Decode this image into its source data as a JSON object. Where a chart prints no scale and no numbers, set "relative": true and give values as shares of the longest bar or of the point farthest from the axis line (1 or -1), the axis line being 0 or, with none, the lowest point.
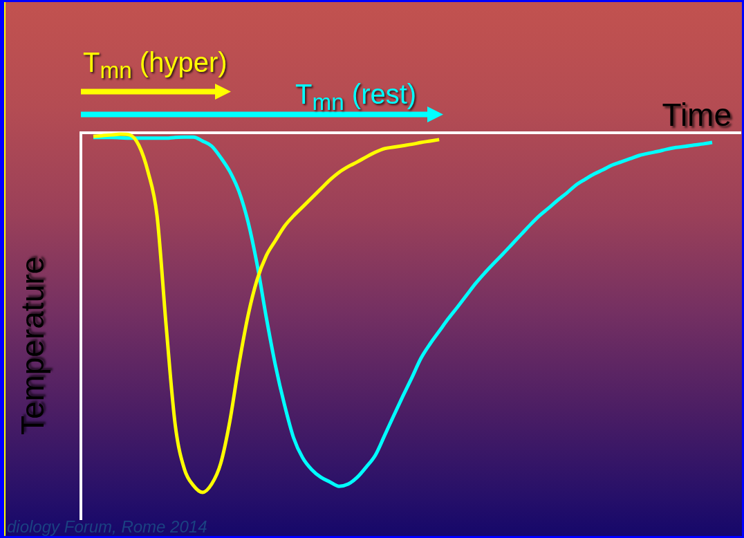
{
  "chart_data": {
    "type": "line",
    "relative": true,
    "xlabel": "Time",
    "ylabel": "Temperature",
    "legend": "top left",
    "marker": "none",
    "categories": [
      null,
      null,
      null,
      null,
      null,
      null,
      null,
      null,
      null,
      null,
      null,
      null,
      null,
      null,
      null,
      null,
      null,
      null,
      null,
      null,
      null,
      null,
      null,
      null,
      null,
      null,
      null,
      null,
      null,
      null,
      null,
      null,
      null,
      null,
      null,
      null,
      null,
      null,
      null,
      null,
      null,
      null,
      null,
      null,
      null,
      null,
      null,
      null,
      null,
      null,
      null,
      null,
      null,
      null,
      null,
      null,
      null,
      null,
      null,
      null,
      null,
      null,
      null,
      null,
      null,
      null,
      null,
      null,
      null
    ],
    "series": [
      {
        "name": "T$_{mn}$ (hyper)",
        "color": "#ffff00",
        "values": [
          -0.01,
          -0.008,
          -0.006,
          -0.004,
          -0.006,
          -0.035,
          -0.108,
          -0.231,
          -0.537,
          -0.813,
          -0.935,
          -0.981,
          -1,
          -0.977,
          -0.919,
          -0.802,
          -0.644,
          -0.508,
          -0.408,
          -0.342,
          -0.3,
          -0.26,
          -0.231,
          -0.206,
          -0.181,
          -0.156,
          -0.131,
          -0.11,
          -0.094,
          -0.081,
          -0.067,
          -0.054,
          -0.044,
          -0.04,
          -0.036,
          -0.032,
          -0.027,
          -0.023,
          -0.019,
          null,
          null,
          null,
          null,
          null,
          null,
          null,
          null,
          null,
          null,
          null,
          null,
          null,
          null,
          null,
          null,
          null,
          null,
          null,
          null,
          null,
          null,
          null,
          null,
          null,
          null,
          null,
          null,
          null,
          null
        ]
      },
      {
        "name": "T$_{mn}$ (rest)",
        "color": "#00ffff",
        "values": [
          -0.013,
          -0.013,
          -0.013,
          -0.014,
          -0.015,
          -0.015,
          -0.015,
          -0.015,
          -0.015,
          -0.013,
          -0.012,
          -0.012,
          -0.023,
          -0.037,
          -0.069,
          -0.108,
          -0.163,
          -0.248,
          -0.367,
          -0.513,
          -0.646,
          -0.756,
          -0.848,
          -0.904,
          -0.937,
          -0.958,
          -0.971,
          -0.983,
          -0.977,
          -0.958,
          -0.929,
          -0.896,
          -0.842,
          -0.787,
          -0.733,
          -0.681,
          -0.627,
          -0.587,
          -0.552,
          -0.517,
          -0.485,
          -0.452,
          -0.419,
          -0.39,
          -0.363,
          -0.337,
          -0.31,
          -0.283,
          -0.256,
          -0.231,
          -0.21,
          -0.188,
          -0.168,
          -0.146,
          -0.13,
          -0.115,
          -0.103,
          -0.09,
          -0.081,
          -0.072,
          -0.063,
          -0.057,
          -0.052,
          -0.046,
          -0.041,
          -0.038,
          -0.034,
          -0.031,
          -0.027
        ]
      }
    ],
    "annotations": [
      "diology Forum, Rome 2014"
    ]
  }
}
